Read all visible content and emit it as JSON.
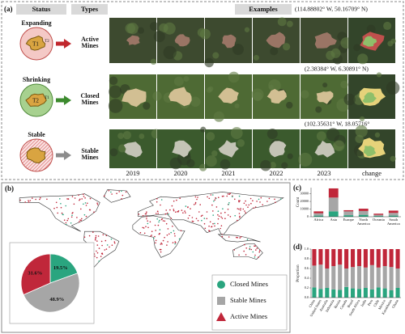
{
  "panel_a": {
    "label": "(a)",
    "headers": {
      "status": "Status",
      "types": "Types",
      "examples": "Examples"
    },
    "rows": [
      {
        "status": "Expanding",
        "regions": [
          "T1",
          "T2"
        ],
        "type": "Active Mines",
        "coords": "(114.88802° W, 50.16709° N)"
      },
      {
        "status": "Shrinking",
        "regions": [
          "T2",
          "T1"
        ],
        "type": "Closed Mines",
        "coords": "(2.38384° W, 6.30891° N)"
      },
      {
        "status": "Stable",
        "type": "Stable Mines",
        "coords": "(102.35631° W, 18.05716°"
      }
    ],
    "years": [
      "2019",
      "2020",
      "2021",
      "2022",
      "2023"
    ],
    "change": "change"
  },
  "chart_data": [
    {
      "type": "pie",
      "panel": "(b)",
      "labels": [
        "Closed Mines",
        "Stable Mines",
        "Active Mines"
      ],
      "values": [
        19.5,
        48.9,
        31.6
      ],
      "value_labels": [
        "19.5%",
        "48.9%",
        "31.6%"
      ],
      "colors": [
        "#2aa57f",
        "#a6a6a6",
        "#c0273a"
      ]
    },
    {
      "type": "bar",
      "panel": "(c)",
      "stacked": true,
      "ylabel": "Count",
      "categories": [
        "Africa",
        "Asia",
        "Europe",
        "North America",
        "Oceania",
        "South America"
      ],
      "series": [
        {
          "color": "#2aa57f",
          "values": [
            1500,
            7000,
            2000,
            2500,
            1000,
            1500
          ]
        },
        {
          "color": "#a6a6a6",
          "values": [
            3000,
            18000,
            5000,
            5000,
            1500,
            3500
          ]
        },
        {
          "color": "#c0273a",
          "values": [
            2500,
            12000,
            1500,
            3000,
            1500,
            3000
          ]
        }
      ],
      "ylim": [
        0,
        38000
      ],
      "yticks": [
        0,
        10000,
        20000,
        30000
      ]
    },
    {
      "type": "bar",
      "panel": "(d)",
      "stacked": true,
      "ylabel": "Proportion",
      "categories": [
        "China",
        "United States",
        "Australia",
        "Indonesia",
        "Russia",
        "Canada",
        "Brazil",
        "South Africa",
        "India",
        "Peru",
        "Chile",
        "Mexico",
        "Kazakhstan",
        "Ghana"
      ],
      "series": [
        {
          "color": "#2aa57f",
          "values": [
            0.21,
            0.18,
            0.2,
            0.17,
            0.16,
            0.22,
            0.19,
            0.18,
            0.2,
            0.17,
            0.21,
            0.19,
            0.15,
            0.2
          ]
        },
        {
          "color": "#a6a6a6",
          "values": [
            0.45,
            0.5,
            0.4,
            0.48,
            0.52,
            0.38,
            0.44,
            0.47,
            0.42,
            0.5,
            0.41,
            0.46,
            0.48,
            0.4
          ]
        },
        {
          "color": "#c0273a",
          "values": [
            0.34,
            0.32,
            0.4,
            0.35,
            0.32,
            0.4,
            0.37,
            0.35,
            0.38,
            0.33,
            0.38,
            0.35,
            0.37,
            0.4
          ]
        }
      ],
      "ylim": [
        0,
        1
      ],
      "yticks": [
        {
          "value": 0,
          "label": "0.0"
        },
        0.2,
        0.4,
        0.6,
        0.8,
        {
          "value": 1,
          "label": "1.0"
        }
      ]
    }
  ]
}
